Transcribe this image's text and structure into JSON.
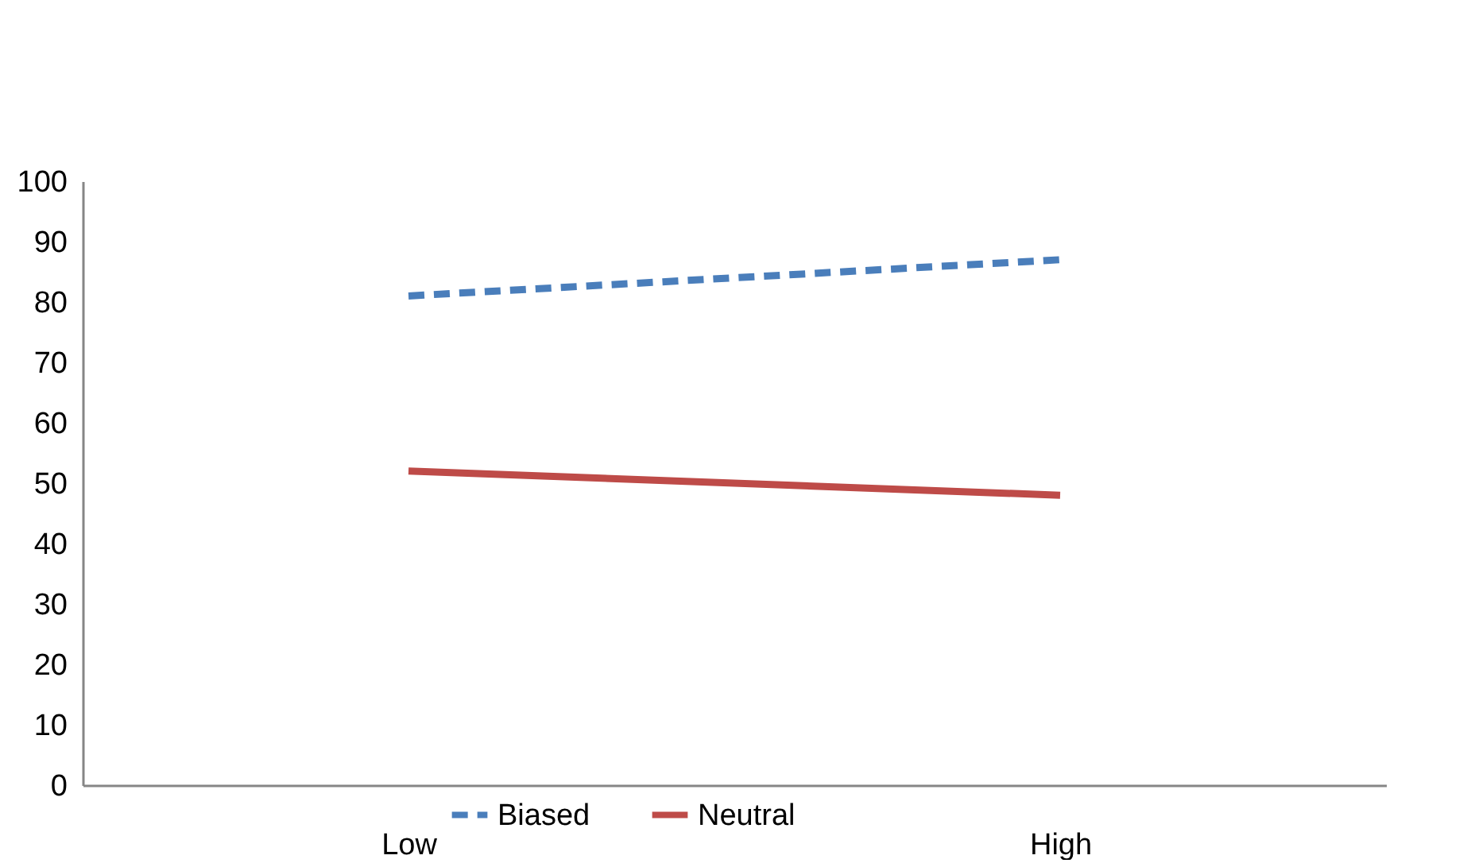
{
  "chart_data": {
    "type": "line",
    "categories": [
      "Low",
      "High"
    ],
    "series": [
      {
        "name": "Biased",
        "color": "#4a7ebb",
        "line_style": "dashed",
        "values": [
          81,
          87
        ]
      },
      {
        "name": "Neutral",
        "color": "#be4b48",
        "line_style": "solid",
        "values": [
          52,
          48
        ]
      }
    ],
    "ylim": [
      0,
      100
    ],
    "yticks": [
      0,
      10,
      20,
      30,
      40,
      50,
      60,
      70,
      80,
      90,
      100
    ],
    "grid": false,
    "legend": "bottom",
    "marker": "none"
  }
}
